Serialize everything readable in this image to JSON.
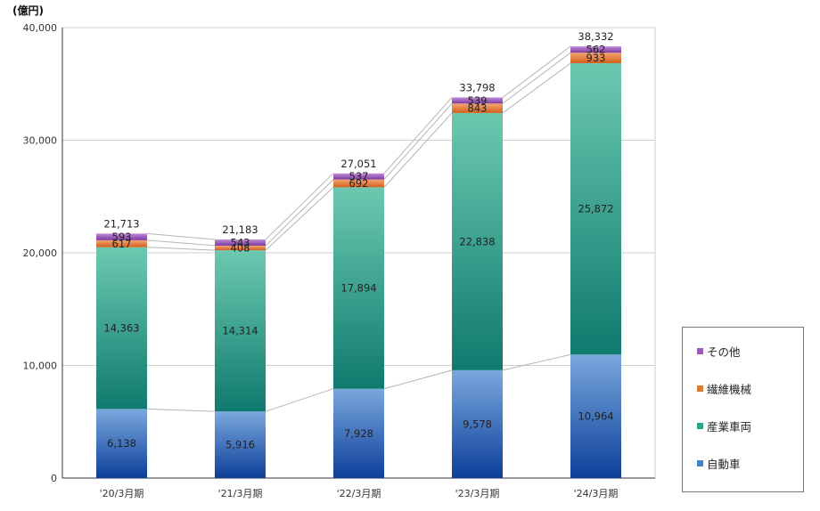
{
  "chart_data": {
    "type": "bar",
    "stacked": true,
    "unit_label": "(億円)",
    "categories": [
      "'20/3月期",
      "'21/3月期",
      "'22/3月期",
      "'23/3月期",
      "'24/3月期"
    ],
    "series": [
      {
        "name": "自動車",
        "values": [
          6138,
          5916,
          7928,
          9578,
          10964
        ],
        "color": "#4a7fc2"
      },
      {
        "name": "産業車両",
        "values": [
          14363,
          14314,
          17894,
          22838,
          25872
        ],
        "color": "#2aa58a"
      },
      {
        "name": "繊維機械",
        "values": [
          617,
          408,
          692,
          843,
          933
        ],
        "color": "#e07a2e"
      },
      {
        "name": "その他",
        "values": [
          593,
          543,
          537,
          539,
          562
        ],
        "color": "#9a5ab8"
      }
    ],
    "value_labels": [
      [
        "6,138",
        "5,916",
        "7,928",
        "9,578",
        "10,964"
      ],
      [
        "14,363",
        "14,314",
        "17,894",
        "22,838",
        "25,872"
      ],
      [
        "617",
        "408",
        "692",
        "843",
        "933"
      ],
      [
        "593",
        "543",
        "537",
        "539",
        "562"
      ]
    ],
    "totals": [
      "21,713",
      "21,183",
      "27,051",
      "33,798",
      "38,332"
    ],
    "yticks": [
      "0",
      "10,000",
      "20,000",
      "30,000",
      "40,000"
    ],
    "ytick_values": [
      0,
      10000,
      20000,
      30000,
      40000
    ],
    "ylim": [
      0,
      40000
    ],
    "grid": true,
    "legend_position": "right",
    "legend_order": [
      "その他",
      "繊維機械",
      "産業車両",
      "自動車"
    ]
  }
}
